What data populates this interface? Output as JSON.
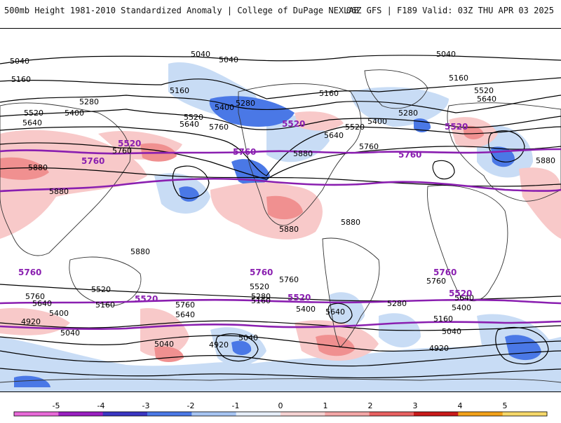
{
  "header": {
    "title": "500mb Height 1981-2010 Standardized Anomaly | College of DuPage NEXLAB",
    "run_info": "06Z GFS | F189 Valid: 03Z THU APR 03 2025"
  },
  "colors": {
    "reference_contour": "#8a1fb0",
    "height_contour": "#000000",
    "coastline": "#333333",
    "anom_neg_1": "#c8dcf5",
    "anom_neg_2": "#7aa7ea",
    "anom_neg_3": "#3e68d6",
    "anom_pos_1": "#f8c9c9",
    "anom_pos_2": "#f09090",
    "anom_pos_3": "#e05a5a"
  },
  "map": {
    "height_labels": [
      "5040",
      "5160",
      "5280",
      "5400",
      "5520",
      "5640",
      "5760",
      "5880",
      "4920"
    ],
    "reference_labels": [
      "5520",
      "5760"
    ]
  },
  "colorbar": {
    "ticks": [
      "-5",
      "-4",
      "-3",
      "-2",
      "-1",
      "0",
      "1",
      "2",
      "3",
      "4",
      "5"
    ],
    "colors": [
      "#e86ad8",
      "#9a1fc0",
      "#3a36c2",
      "#4a78e6",
      "#a6c4f2",
      "#e6eef9",
      "#f6d2d2",
      "#f4a6a6",
      "#e86060",
      "#c91a1a",
      "#f2a21a",
      "#f6d86a"
    ]
  }
}
